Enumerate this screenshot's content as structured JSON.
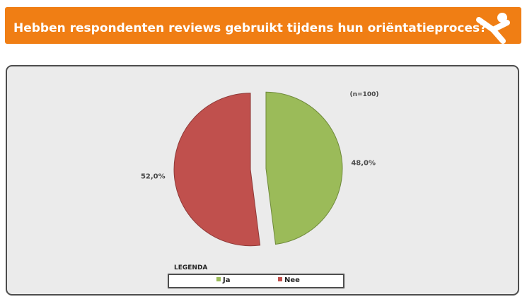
{
  "header": {
    "title": "Hebben respondenten reviews gebruikt tijdens hun oriëntatieproces?"
  },
  "colors": {
    "header_bg": "#f07e14",
    "ja": "#9bbb59",
    "nee": "#c0504d"
  },
  "chart_data": {
    "type": "pie",
    "annotation": "(n=100)",
    "slices": [
      {
        "label": "Ja",
        "value": 48.0,
        "value_label": "48,0%",
        "color": "#9bbb59"
      },
      {
        "label": "Nee",
        "value": 52.0,
        "value_label": "52,0%",
        "color": "#c0504d"
      }
    ],
    "legend": {
      "title": "LEGENDA",
      "placement": "bottom"
    }
  }
}
